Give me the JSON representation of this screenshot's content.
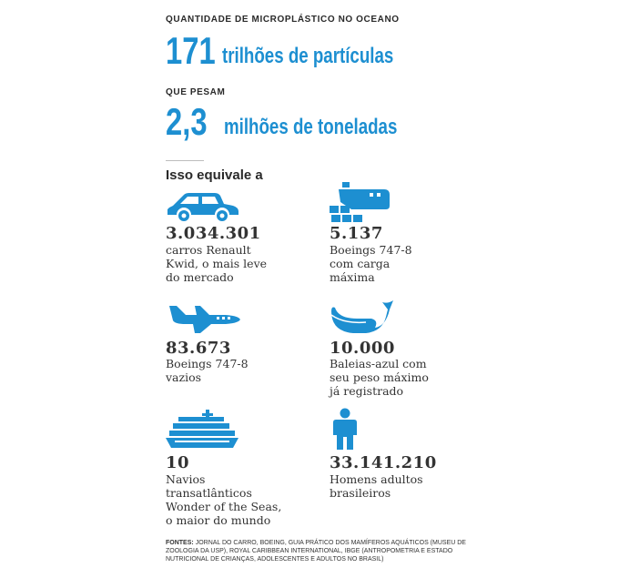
{
  "header": {
    "kicker_1": "QUANTIDADE DE MICROPLÁSTICO NO OCEANO",
    "value_1": "171",
    "unit_1": "trilhões de partículas",
    "kicker_2": "QUE PESAM",
    "value_2": "2,3",
    "unit_2": "milhões de toneladas"
  },
  "equivale_label": "Isso equivale a",
  "items": [
    {
      "icon": "car-icon",
      "value": "3.034.301",
      "description": "carros Renault\nKwid, o mais leve\ndo mercado"
    },
    {
      "icon": "cargo-plane-icon",
      "value": "5.137",
      "description": "Boeings 747-8\ncom carga\nmáxima"
    },
    {
      "icon": "airplane-icon",
      "value": "83.673",
      "description": "Boeings 747-8\nvazios"
    },
    {
      "icon": "whale-icon",
      "value": "10.000",
      "description": "Baleias-azul com\nseu peso máximo\njá registrado"
    },
    {
      "icon": "cruise-ship-icon",
      "value": "10",
      "description": "Navios\ntransatlânticos\nWonder of the Seas,\no maior do mundo"
    },
    {
      "icon": "man-icon",
      "value": "33.141.210",
      "description": "Homens adultos\nbrasileiros"
    }
  ],
  "sources": {
    "label": "FONTES:",
    "text": "JORNAL DO CARRO, BOEING, GUIA PRÁTICO DOS MAMÍFEROS AQUÁTICOS (MUSEU DE ZOOLOGIA DA USP), ROYAL CARIBBEAN INTERNATIONAL, IBGE (ANTROPOMETRIA E ESTADO NUTRICIONAL DE CRIANÇAS, ADOLESCENTES E ADULTOS NO BRASIL)"
  },
  "colors": {
    "accent": "#1d8fd1",
    "text": "#333333"
  }
}
